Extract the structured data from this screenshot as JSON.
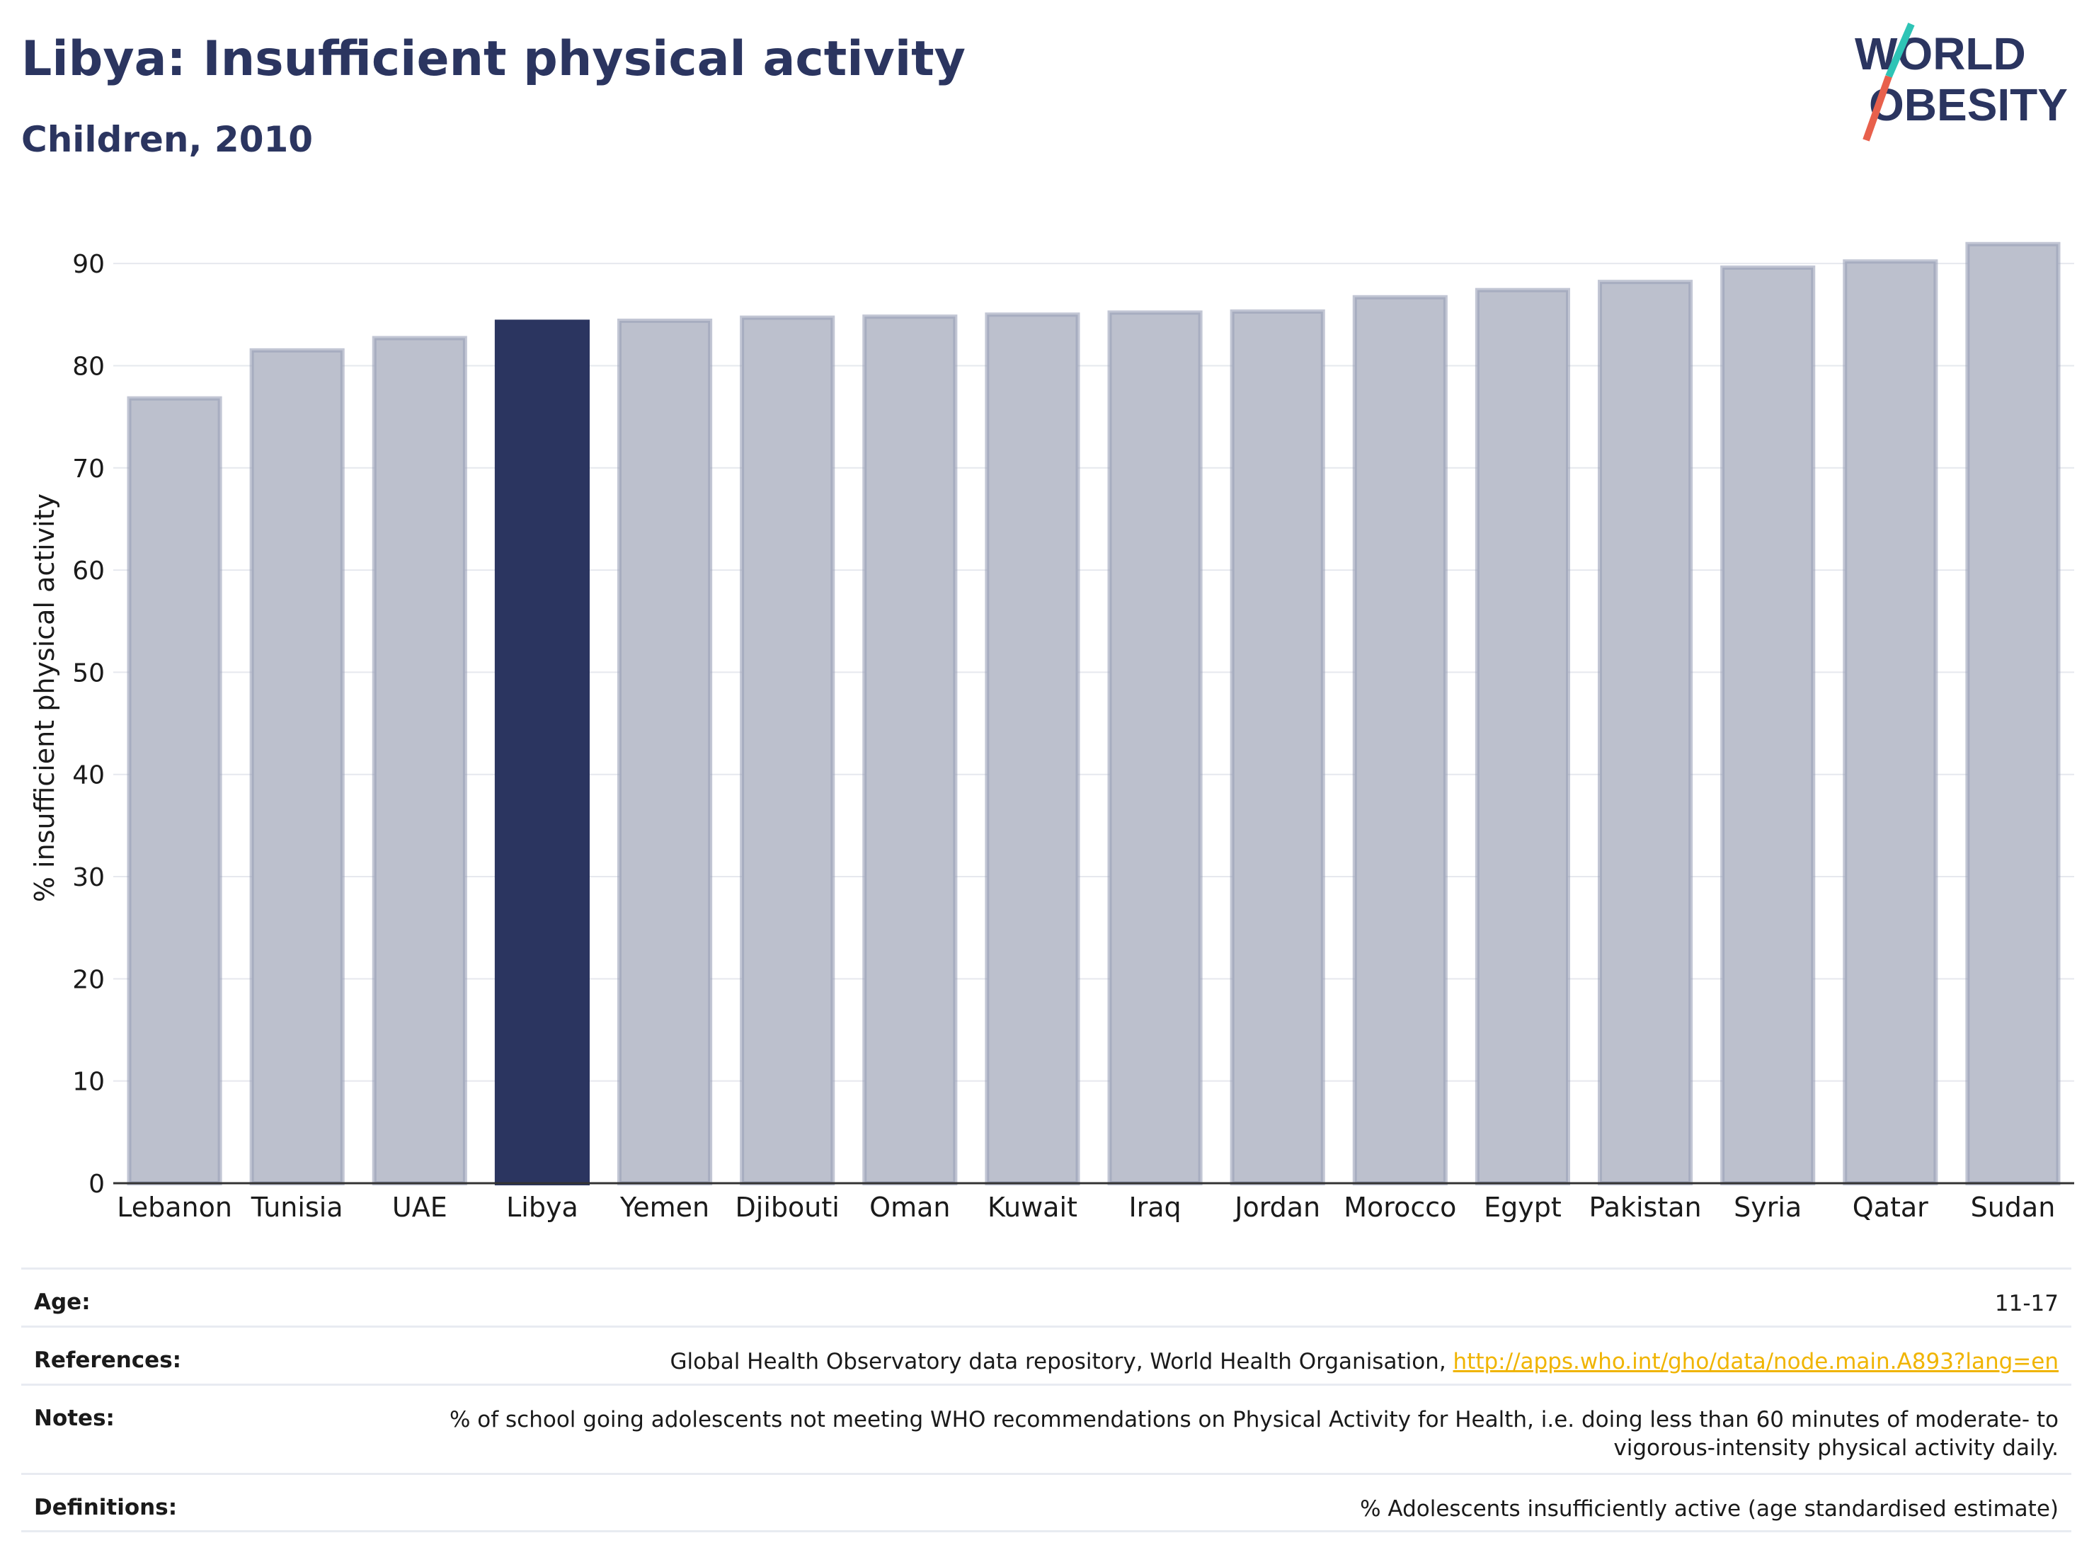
{
  "header": {
    "title": "Libya: Insufficient physical activity",
    "subtitle": "Children, 2010"
  },
  "logo": {
    "line1": "WORLD",
    "line2": "OBESITY",
    "accent_colors": [
      "#2ec4b6",
      "#e8604c"
    ]
  },
  "colors": {
    "highlight": "#2b3560",
    "bar": "#bcc0cd",
    "bar_border": "#9aa0b8",
    "link": "#f0b400",
    "text": "#2b3560"
  },
  "chart_data": {
    "type": "bar",
    "title": "Libya: Insufficient physical activity",
    "subtitle": "Children, 2010",
    "ylabel": "% insufficient physical activity",
    "xlabel": "",
    "ylim": [
      0,
      95
    ],
    "yticks": [
      0,
      10,
      20,
      30,
      40,
      50,
      60,
      70,
      80,
      90
    ],
    "categories": [
      "Lebanon",
      "Tunisia",
      "UAE",
      "Libya",
      "Yemen",
      "Djibouti",
      "Oman",
      "Kuwait",
      "Iraq",
      "Jordan",
      "Morocco",
      "Egypt",
      "Pakistan",
      "Syria",
      "Qatar",
      "Sudan"
    ],
    "values": [
      76.8,
      81.5,
      82.7,
      84.3,
      84.4,
      84.7,
      84.8,
      85.0,
      85.2,
      85.3,
      86.7,
      87.4,
      88.2,
      89.6,
      90.2,
      91.9
    ],
    "highlight": "Libya",
    "grid": true
  },
  "info": {
    "rows": [
      {
        "label": "Age:",
        "value": "11-17"
      },
      {
        "label": "References:",
        "value": "Global Health Observatory data repository, World Health Organisation,",
        "link": "http://apps.who.int/gho/data/node.main.A893?lang=en"
      },
      {
        "label": "Notes:",
        "value": "% of school going adolescents not meeting WHO recommendations on Physical Activity for Health, i.e. doing less than 60 minutes of moderate- to vigorous-intensity physical activity daily."
      },
      {
        "label": "Definitions:",
        "value": "% Adolescents insufficiently active (age standardised estimate)"
      }
    ]
  }
}
